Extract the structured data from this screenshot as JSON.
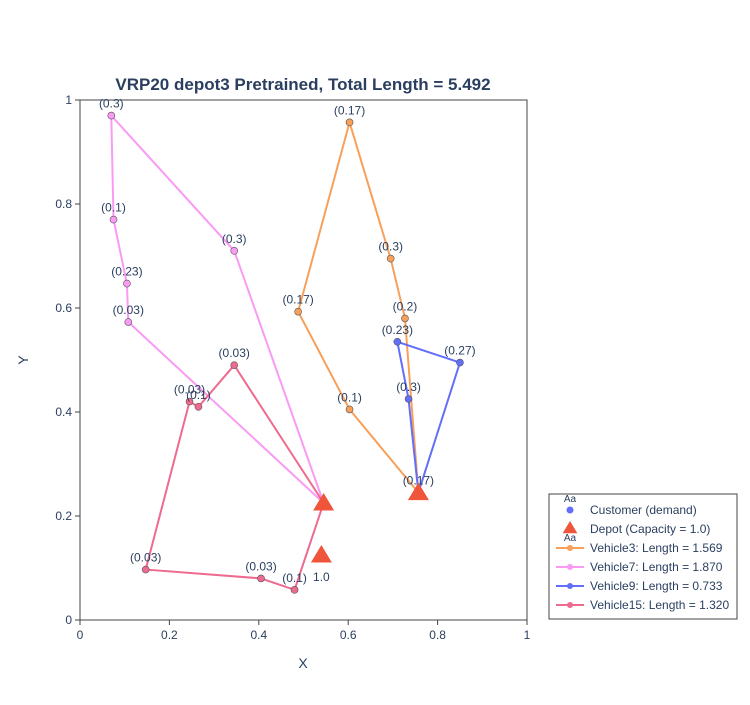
{
  "chart_data": {
    "type": "scatter",
    "title": "VRP20 depot3 Pretrained, Total Length = 5.492",
    "xlabel": "X",
    "ylabel": "Y",
    "xlim": [
      0,
      1
    ],
    "ylim": [
      0,
      1
    ],
    "x_ticks": [
      "0",
      "0.2",
      "0.4",
      "0.6",
      "0.8",
      "1"
    ],
    "y_ticks": [
      "0",
      "0.2",
      "0.4",
      "0.6",
      "0.8",
      "1"
    ],
    "x_tick_values": [
      0,
      0.2,
      0.4,
      0.6,
      0.8,
      1
    ],
    "y_tick_values": [
      0,
      0.2,
      0.4,
      0.6,
      0.8,
      1
    ],
    "grid": false,
    "legend_position": "bottom-right, outside plot",
    "legend": [
      {
        "label": "Customer (demand)",
        "symbol": "dot",
        "color": "#636efa"
      },
      {
        "label": "Depot (Capacity = 1.0)",
        "symbol": "triangle",
        "color": "#ef553b"
      },
      {
        "label": "Vehicle3: Length = 1.569",
        "symbol": "line",
        "color": "#f8a05a"
      },
      {
        "label": "Vehicle7: Length = 1.870",
        "symbol": "line",
        "color": "#f99af5"
      },
      {
        "label": "Vehicle9: Length = 0.733",
        "symbol": "line",
        "color": "#636efa"
      },
      {
        "label": "Vehicle15: Length = 1.320",
        "symbol": "line",
        "color": "#ee6a8f"
      }
    ],
    "legend_symbol_text": "Aa",
    "depots": [
      {
        "x": 0.545,
        "y": 0.225
      },
      {
        "x": 0.757,
        "y": 0.245
      },
      {
        "x": 0.54,
        "y": 0.125,
        "label": "1.0"
      }
    ],
    "routes": [
      {
        "name": "Vehicle3",
        "color": "#f8a05a",
        "points": [
          {
            "x": 0.757,
            "y": 0.245,
            "label": ""
          },
          {
            "x": 0.603,
            "y": 0.405,
            "label": "(0.1)"
          },
          {
            "x": 0.488,
            "y": 0.593,
            "label": "(0.17)"
          },
          {
            "x": 0.603,
            "y": 0.957,
            "label": "(0.17)"
          },
          {
            "x": 0.695,
            "y": 0.695,
            "label": "(0.3)"
          },
          {
            "x": 0.727,
            "y": 0.58,
            "label": "(0.2)"
          },
          {
            "x": 0.757,
            "y": 0.245,
            "label": ""
          }
        ]
      },
      {
        "name": "Vehicle7",
        "color": "#f99af5",
        "points": [
          {
            "x": 0.545,
            "y": 0.225,
            "label": ""
          },
          {
            "x": 0.345,
            "y": 0.71,
            "label": "(0.3)"
          },
          {
            "x": 0.07,
            "y": 0.97,
            "label": "(0.3)"
          },
          {
            "x": 0.075,
            "y": 0.77,
            "label": "(0.1)"
          },
          {
            "x": 0.105,
            "y": 0.647,
            "label": "(0.23)"
          },
          {
            "x": 0.108,
            "y": 0.573,
            "label": "(0.03)"
          },
          {
            "x": 0.545,
            "y": 0.225,
            "label": ""
          }
        ]
      },
      {
        "name": "Vehicle9",
        "color": "#636efa",
        "points": [
          {
            "x": 0.757,
            "y": 0.245,
            "label": "(0.17)"
          },
          {
            "x": 0.735,
            "y": 0.425,
            "label": "(0.3)"
          },
          {
            "x": 0.71,
            "y": 0.535,
            "label": "(0.23)"
          },
          {
            "x": 0.85,
            "y": 0.495,
            "label": "(0.27)"
          },
          {
            "x": 0.757,
            "y": 0.245,
            "label": ""
          }
        ]
      },
      {
        "name": "Vehicle15",
        "color": "#ee6a8f",
        "points": [
          {
            "x": 0.545,
            "y": 0.225,
            "label": ""
          },
          {
            "x": 0.345,
            "y": 0.49,
            "label": "(0.03)"
          },
          {
            "x": 0.265,
            "y": 0.41,
            "label": "(0.1)"
          },
          {
            "x": 0.245,
            "y": 0.42,
            "label": "(0.03)"
          },
          {
            "x": 0.147,
            "y": 0.097,
            "label": "(0.03)"
          },
          {
            "x": 0.405,
            "y": 0.08,
            "label": "(0.03)"
          },
          {
            "x": 0.48,
            "y": 0.058,
            "label": "(0.1)"
          },
          {
            "x": 0.545,
            "y": 0.225,
            "label": ""
          }
        ]
      }
    ]
  }
}
